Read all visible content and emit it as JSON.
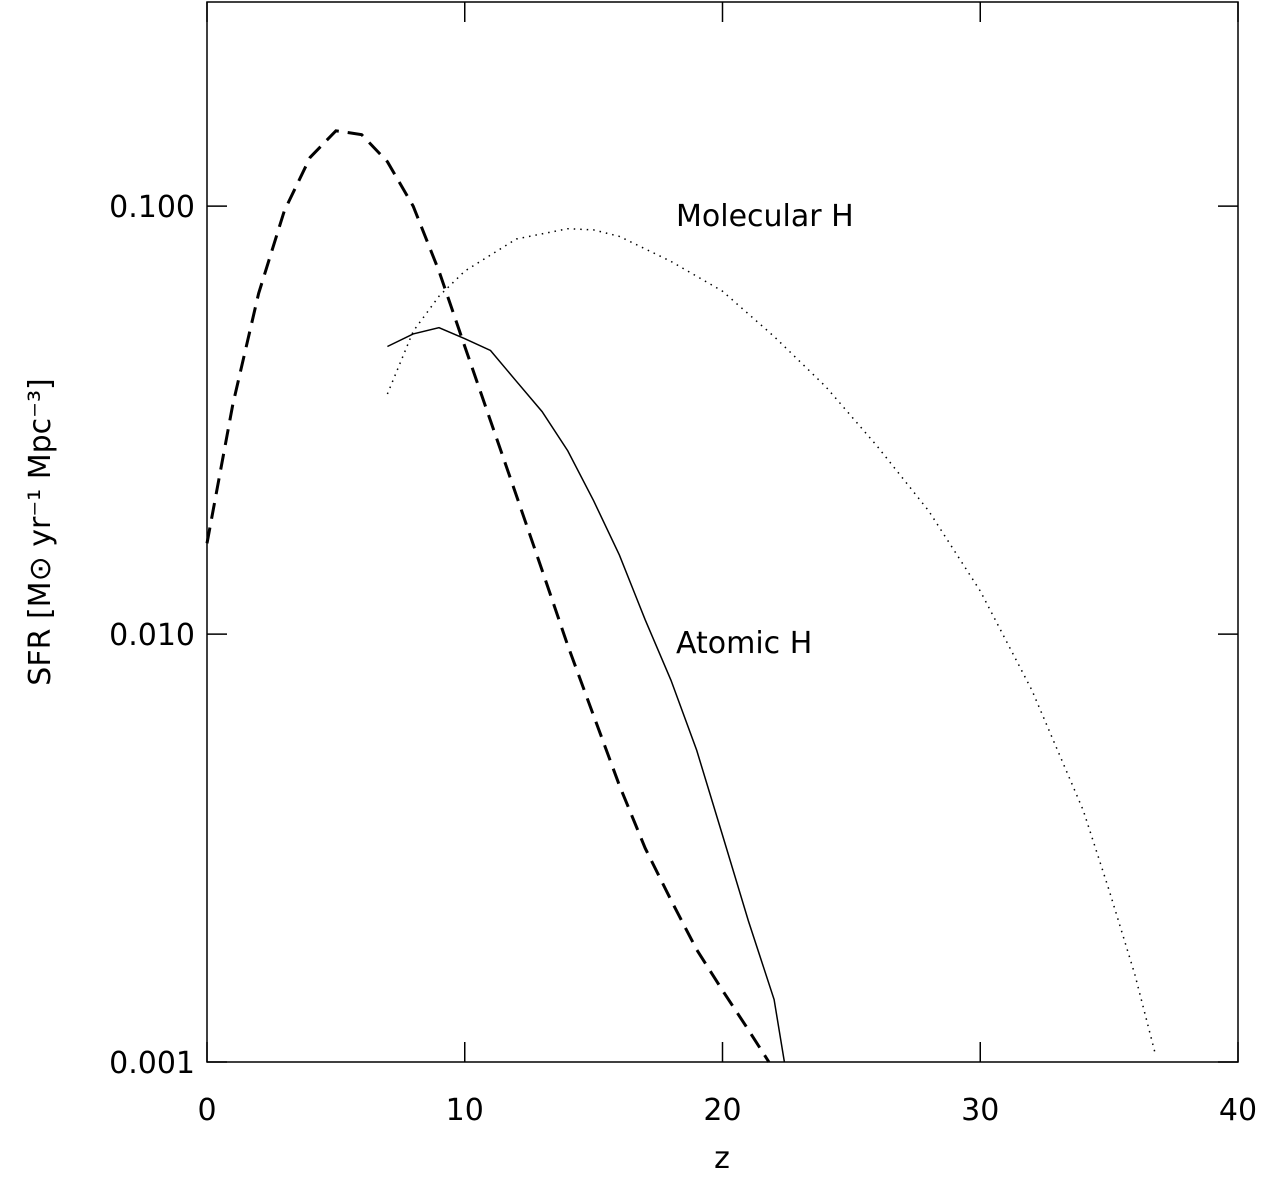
{
  "chart_data": {
    "type": "line",
    "xlabel": "z",
    "ylabel": "SFR [M⊙ yr⁻¹ Mpc⁻³]",
    "log_y": true,
    "xlim": [
      0,
      40
    ],
    "xticks": [
      0,
      10,
      20,
      30,
      40
    ],
    "ylim": [
      0.001,
      0.3
    ],
    "yticks": [
      0.001,
      {
        "value": 0.01,
        "label": "0.010"
      },
      {
        "value": 0.1,
        "label": "0.100"
      }
    ],
    "series": [
      {
        "color": "#000000",
        "line_style": "dashed",
        "x": [
          0,
          1,
          2,
          3,
          4,
          5,
          6,
          7,
          8,
          9,
          10,
          11,
          12,
          13,
          14,
          15,
          16,
          17,
          18,
          19,
          20,
          21,
          21.8
        ],
        "values": [
          0.0163,
          0.0344,
          0.0625,
          0.0975,
          0.13,
          0.15,
          0.147,
          0.127,
          0.1,
          0.0705,
          0.047,
          0.0315,
          0.0211,
          0.0141,
          0.0094,
          0.00645,
          0.00443,
          0.00316,
          0.00239,
          0.00183,
          0.00147,
          0.00119,
          0.001
        ]
      },
      {
        "name": "Atomic H",
        "color": "#000000",
        "line_style": "solid",
        "x": [
          7,
          8,
          9,
          10,
          11,
          12,
          13,
          14,
          15,
          16,
          17,
          18,
          19,
          20,
          21,
          22,
          22.4
        ],
        "values": [
          0.047,
          0.0503,
          0.052,
          0.049,
          0.046,
          0.039,
          0.0331,
          0.0268,
          0.0205,
          0.0153,
          0.0108,
          0.0078,
          0.00535,
          0.00339,
          0.00214,
          0.0014,
          0.001
        ]
      },
      {
        "name": "Molecular H",
        "color": "#000000",
        "line_style": "dotted",
        "x": [
          7,
          8,
          9,
          10,
          12,
          14,
          15,
          16,
          18,
          20,
          22,
          24,
          26,
          28,
          30,
          32,
          34,
          35,
          36,
          36.8
        ],
        "values": [
          0.0364,
          0.051,
          0.0616,
          0.0705,
          0.0838,
          0.0886,
          0.088,
          0.085,
          0.0743,
          0.0633,
          0.0496,
          0.0379,
          0.0275,
          0.0194,
          0.0126,
          0.0074,
          0.00387,
          0.00252,
          0.0016,
          0.00104
        ]
      }
    ]
  }
}
